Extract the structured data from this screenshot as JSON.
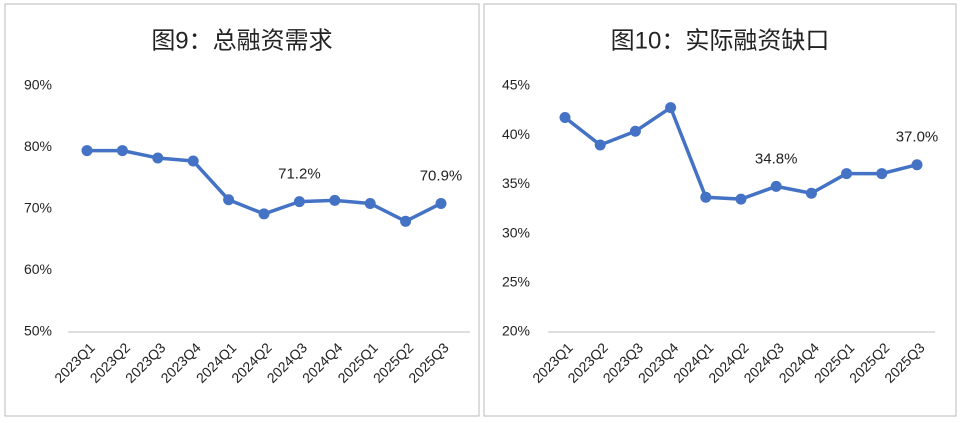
{
  "chart_data": [
    {
      "type": "line",
      "title": "图9：总融资需求",
      "categories": [
        "2023Q1",
        "2023Q2",
        "2023Q3",
        "2023Q4",
        "2024Q1",
        "2024Q2",
        "2024Q3",
        "2024Q4",
        "2025Q1",
        "2025Q2",
        "2025Q3"
      ],
      "series": [
        {
          "color": "#4472c4",
          "values": [
            79.5,
            79.5,
            78.3,
            77.8,
            71.5,
            69.2,
            71.2,
            71.4,
            70.9,
            68.0,
            70.9
          ],
          "value_labels": [
            null,
            null,
            null,
            null,
            null,
            null,
            "71.2%",
            null,
            null,
            null,
            "70.9%"
          ]
        }
      ],
      "ylim": [
        50,
        90
      ],
      "yticks": [
        {
          "value": 50,
          "label": "50%"
        },
        {
          "value": 60,
          "label": "60%"
        },
        {
          "value": 70,
          "label": "70%"
        },
        {
          "value": 80,
          "label": "80%"
        },
        {
          "value": 90,
          "label": "90%"
        }
      ]
    },
    {
      "type": "line",
      "title": "图10：实际融资缺口",
      "categories": [
        "2023Q1",
        "2023Q2",
        "2023Q3",
        "2023Q4",
        "2024Q1",
        "2024Q2",
        "2024Q3",
        "2024Q4",
        "2025Q1",
        "2025Q2",
        "2025Q3"
      ],
      "series": [
        {
          "color": "#4472c4",
          "values": [
            41.8,
            39.0,
            40.4,
            42.8,
            33.7,
            33.5,
            34.8,
            34.1,
            36.1,
            36.1,
            37.0
          ],
          "value_labels": [
            null,
            null,
            null,
            null,
            null,
            null,
            "34.8%",
            null,
            null,
            null,
            "37.0%"
          ]
        }
      ],
      "ylim": [
        20,
        45
      ],
      "yticks": [
        {
          "value": 20,
          "label": "20%"
        },
        {
          "value": 25,
          "label": "25%"
        },
        {
          "value": 30,
          "label": "30%"
        },
        {
          "value": 35,
          "label": "35%"
        },
        {
          "value": 40,
          "label": "40%"
        },
        {
          "value": 45,
          "label": "45%"
        }
      ]
    }
  ]
}
